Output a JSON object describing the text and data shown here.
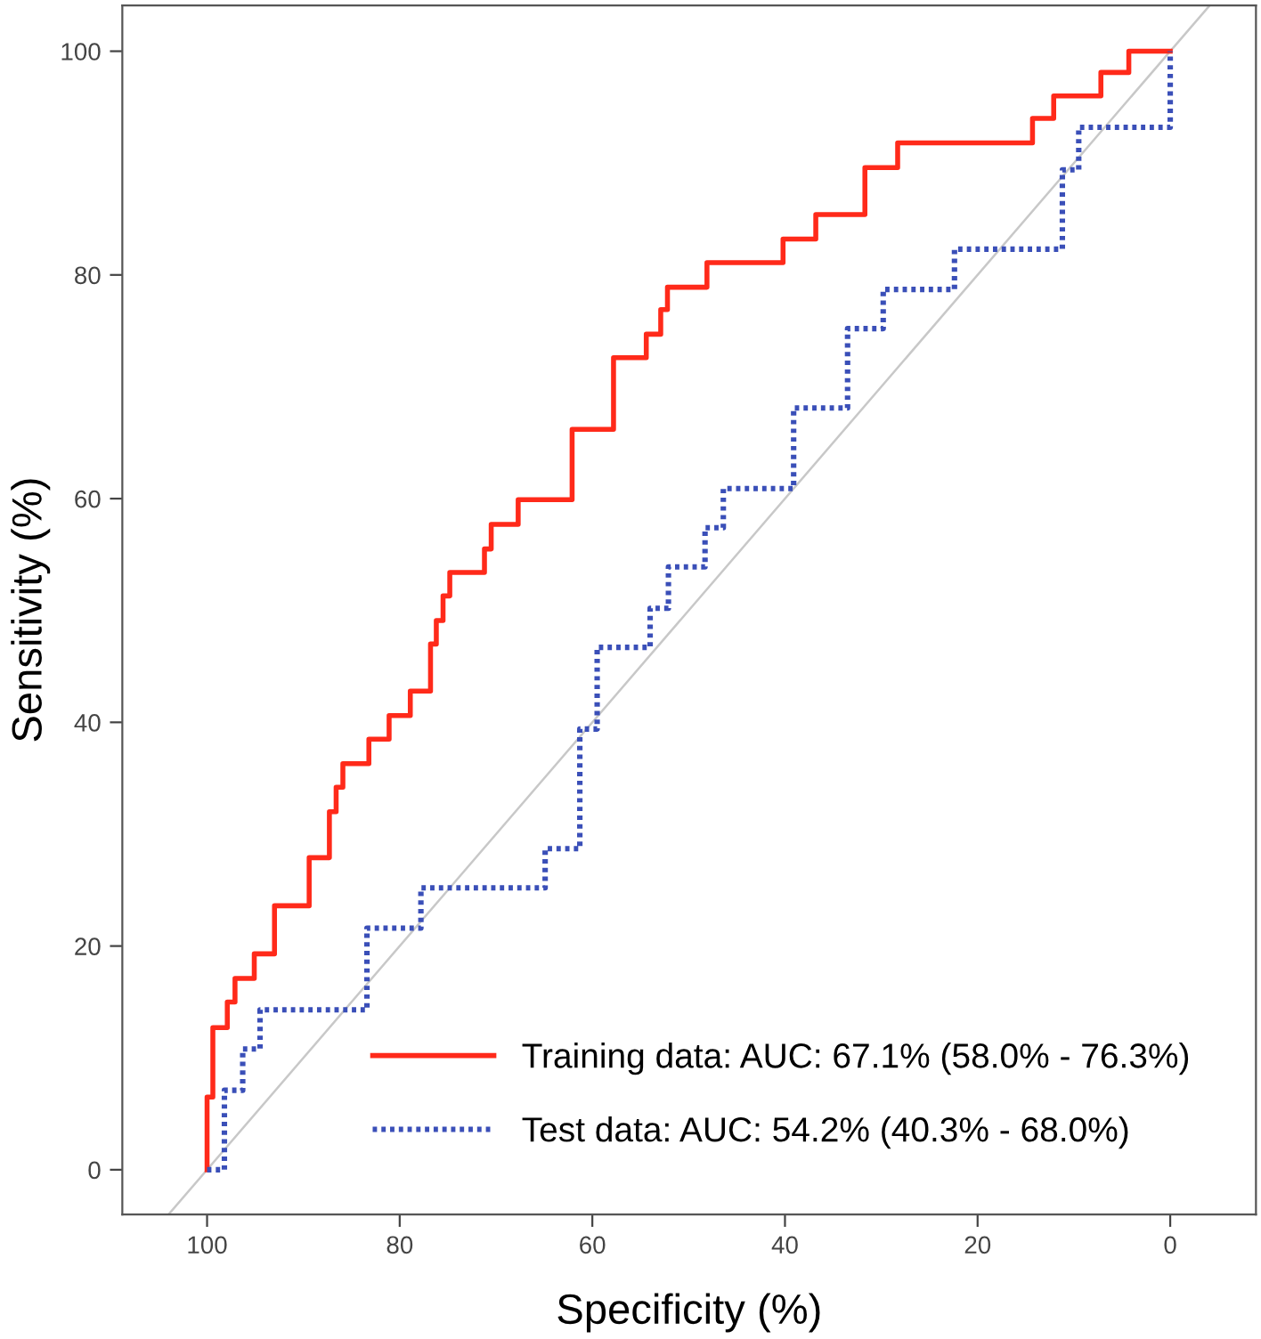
{
  "chart_data": {
    "type": "step",
    "xlabel": "Specificity (%)",
    "ylabel": "Sensitivity (%)",
    "xlim": [
      108.8,
      -8.9
    ],
    "ylim": [
      -4,
      104.1
    ],
    "xticks": [
      100,
      80,
      60,
      40,
      20,
      0
    ],
    "yticks": [
      0,
      20,
      40,
      60,
      80,
      100
    ],
    "grid": false,
    "legend": "bottom right",
    "series": [
      {
        "name": "Training data: AUC: 67.1% (58.0% - 76.3%)",
        "color": "#ff2a1a",
        "line_style": "solid",
        "x": [
          100,
          99.4,
          97.9,
          97.1,
          95.1,
          93.0,
          89.4,
          87.3,
          86.6,
          85.9,
          83.2,
          81.1,
          78.9,
          76.8,
          76.2,
          75.5,
          74.8,
          71.2,
          70.5,
          67.7,
          62.1,
          57.8,
          54.4,
          52.9,
          52.2,
          48.1,
          40.2,
          36.8,
          31.7,
          28.3,
          14.3,
          12.1,
          7.2,
          4.3,
          0
        ],
        "values": [
          0,
          6.5,
          12.7,
          15.0,
          17.1,
          19.3,
          23.6,
          27.9,
          32.0,
          34.2,
          36.3,
          38.5,
          40.6,
          42.8,
          47.0,
          49.1,
          51.3,
          53.4,
          55.5,
          57.7,
          59.9,
          66.2,
          72.6,
          74.7,
          76.9,
          78.9,
          81.1,
          83.2,
          85.4,
          89.6,
          91.8,
          94.0,
          96.0,
          98.1,
          100
        ]
      },
      {
        "name": "Test data: AUC: 54.2% (40.3% - 68.0%)",
        "color": "#3a4fb8",
        "line_style": "dotted",
        "x": [
          100,
          98.2,
          96.3,
          94.5,
          83.4,
          77.8,
          64.9,
          61.3,
          59.5,
          54.0,
          52.1,
          48.3,
          46.4,
          39.1,
          33.5,
          29.8,
          22.4,
          11.2,
          9.5,
          0,
          0
        ],
        "values": [
          0,
          0,
          7.1,
          10.8,
          14.3,
          21.6,
          25.2,
          28.7,
          39.4,
          46.7,
          50.2,
          53.9,
          57.4,
          60.9,
          68.1,
          75.2,
          78.7,
          82.3,
          89.4,
          93.2,
          100
        ]
      },
      {
        "type": "line",
        "color": "#c8c8c8",
        "line_style": "solid",
        "x": [
          104,
          -4
        ],
        "values": [
          -4,
          104
        ]
      }
    ]
  }
}
